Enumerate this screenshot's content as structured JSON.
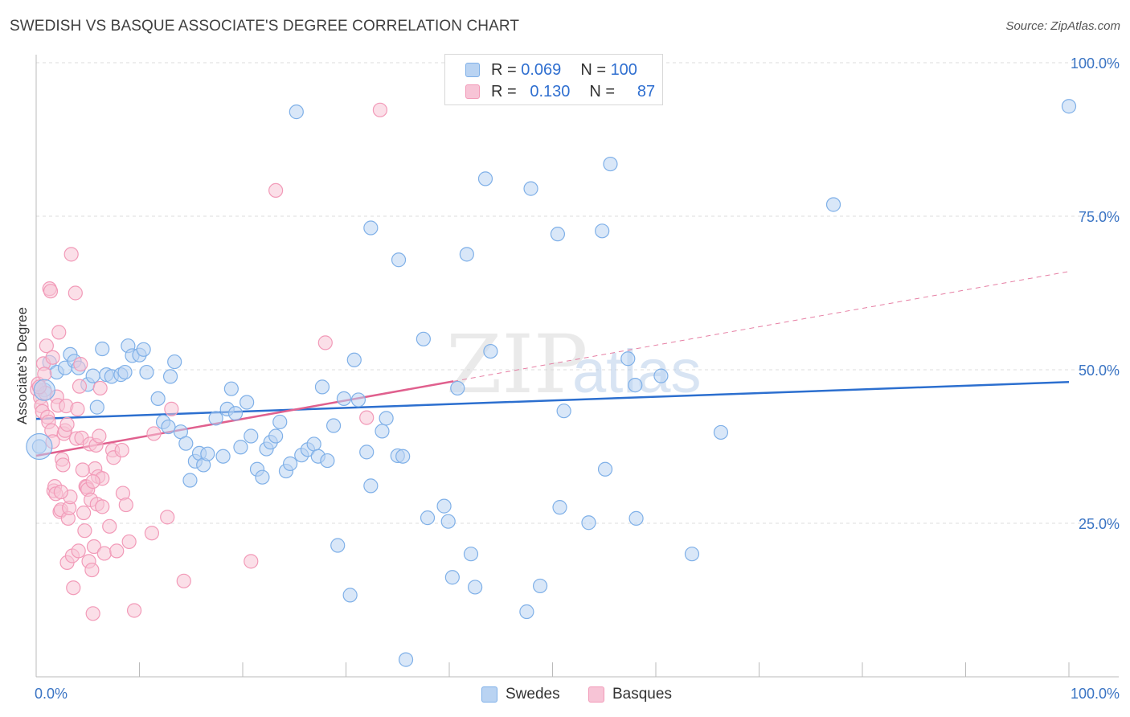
{
  "title": "SWEDISH VS BASQUE ASSOCIATE'S DEGREE CORRELATION CHART",
  "source": "Source: ZipAtlas.com",
  "watermark": {
    "zip": "ZIP",
    "atlas": "atlas"
  },
  "colors": {
    "blue": "#7fb0e8",
    "blue_fill": "#b9d3f2",
    "blue_line": "#2c6fcf",
    "pink": "#f29ab8",
    "pink_fill": "#f7c4d6",
    "pink_line": "#e0608e",
    "axis_text": "#3a74c4"
  },
  "legend": {
    "rows": [
      {
        "r_label": "R =",
        "r_value": "0.069",
        "n_label": "N =",
        "n_value": "100"
      },
      {
        "r_label": "R =",
        "r_value": "0.130",
        "n_label": "N =",
        "n_value": "87"
      }
    ]
  },
  "bottom_legend": {
    "swedes": "Swedes",
    "basques": "Basques"
  },
  "chart_data": {
    "type": "scatter",
    "title": "SWEDISH VS BASQUE ASSOCIATE'S DEGREE CORRELATION CHART",
    "xlabel": "",
    "ylabel": "Associate's Degree",
    "xlim": [
      0,
      100
    ],
    "ylim": [
      0,
      100
    ],
    "x_tick_labels": [
      "0.0%",
      "100.0%"
    ],
    "y_ticks": [
      25,
      50,
      75,
      100
    ],
    "y_tick_labels": [
      "25.0%",
      "50.0%",
      "75.0%",
      "100.0%"
    ],
    "grid": true,
    "series": [
      {
        "name": "Swedes",
        "r": 0.069,
        "n": 100,
        "trend": {
          "x0": 0,
          "y0": 42.0,
          "x1": 100,
          "y1": 48.0,
          "solid_to": 100
        },
        "points": [
          [
            0.3,
            37.5
          ],
          [
            0.8,
            46.7
          ],
          [
            1.3,
            51.2
          ],
          [
            2.0,
            49.6
          ],
          [
            2.8,
            50.3
          ],
          [
            3.3,
            52.5
          ],
          [
            3.7,
            51.4
          ],
          [
            4.1,
            50.3
          ],
          [
            5.0,
            47.6
          ],
          [
            5.5,
            49.0
          ],
          [
            5.9,
            43.9
          ],
          [
            6.4,
            53.4
          ],
          [
            6.8,
            49.2
          ],
          [
            7.3,
            48.9
          ],
          [
            8.2,
            49.2
          ],
          [
            8.6,
            49.6
          ],
          [
            8.9,
            53.9
          ],
          [
            9.3,
            52.3
          ],
          [
            10.0,
            52.4
          ],
          [
            10.4,
            53.3
          ],
          [
            10.7,
            49.6
          ],
          [
            11.8,
            45.3
          ],
          [
            12.3,
            41.5
          ],
          [
            12.8,
            40.7
          ],
          [
            13.0,
            48.9
          ],
          [
            13.4,
            51.3
          ],
          [
            14.0,
            39.9
          ],
          [
            14.5,
            38.0
          ],
          [
            14.9,
            32.0
          ],
          [
            15.4,
            35.1
          ],
          [
            15.8,
            36.4
          ],
          [
            16.2,
            34.5
          ],
          [
            16.6,
            36.3
          ],
          [
            17.4,
            42.1
          ],
          [
            18.1,
            35.9
          ],
          [
            18.5,
            43.6
          ],
          [
            18.9,
            46.9
          ],
          [
            19.3,
            42.9
          ],
          [
            19.8,
            37.4
          ],
          [
            20.4,
            44.7
          ],
          [
            20.8,
            39.2
          ],
          [
            21.4,
            33.8
          ],
          [
            21.9,
            32.5
          ],
          [
            22.3,
            37.1
          ],
          [
            22.7,
            38.2
          ],
          [
            23.2,
            39.2
          ],
          [
            23.6,
            41.5
          ],
          [
            24.2,
            33.5
          ],
          [
            24.6,
            34.7
          ],
          [
            25.2,
            92.0
          ],
          [
            25.7,
            36.1
          ],
          [
            26.3,
            37.0
          ],
          [
            26.9,
            37.9
          ],
          [
            27.3,
            35.9
          ],
          [
            27.7,
            47.2
          ],
          [
            28.2,
            35.2
          ],
          [
            28.8,
            40.9
          ],
          [
            29.2,
            21.4
          ],
          [
            29.8,
            45.3
          ],
          [
            30.4,
            13.3
          ],
          [
            30.8,
            51.6
          ],
          [
            31.2,
            45.1
          ],
          [
            32.0,
            36.6
          ],
          [
            32.4,
            73.1
          ],
          [
            32.4,
            31.1
          ],
          [
            33.5,
            40.0
          ],
          [
            33.9,
            42.1
          ],
          [
            35.0,
            36.0
          ],
          [
            35.5,
            35.9
          ],
          [
            35.1,
            67.9
          ],
          [
            35.8,
            2.8
          ],
          [
            37.5,
            55.0
          ],
          [
            37.9,
            25.9
          ],
          [
            39.5,
            27.8
          ],
          [
            39.9,
            25.3
          ],
          [
            40.3,
            16.2
          ],
          [
            40.8,
            47.0
          ],
          [
            41.7,
            68.8
          ],
          [
            42.1,
            20.0
          ],
          [
            42.5,
            14.6
          ],
          [
            43.5,
            81.1
          ],
          [
            44.0,
            53.0
          ],
          [
            47.5,
            10.6
          ],
          [
            47.9,
            79.5
          ],
          [
            48.8,
            14.8
          ],
          [
            50.5,
            72.1
          ],
          [
            50.7,
            27.6
          ],
          [
            51.1,
            43.3
          ],
          [
            53.5,
            25.1
          ],
          [
            54.8,
            72.6
          ],
          [
            55.1,
            33.8
          ],
          [
            55.6,
            83.5
          ],
          [
            57.3,
            51.8
          ],
          [
            58.1,
            25.8
          ],
          [
            60.5,
            49.0
          ],
          [
            63.5,
            20.0
          ],
          [
            66.3,
            39.8
          ],
          [
            77.2,
            76.9
          ],
          [
            100.0,
            92.9
          ],
          [
            58.0,
            47.5
          ]
        ]
      },
      {
        "name": "Basques",
        "r": 0.13,
        "n": 87,
        "trend": {
          "x0": 0,
          "y0": 36.0,
          "x1": 100,
          "y1": 66.0,
          "solid_to": 40.4
        },
        "points": [
          [
            0.1,
            46.8
          ],
          [
            0.2,
            47.7
          ],
          [
            0.4,
            45.5
          ],
          [
            0.5,
            44.1
          ],
          [
            0.6,
            43.2
          ],
          [
            0.7,
            51.0
          ],
          [
            0.8,
            49.3
          ],
          [
            0.9,
            46.2
          ],
          [
            1.0,
            53.9
          ],
          [
            1.1,
            42.3
          ],
          [
            1.2,
            41.5
          ],
          [
            1.3,
            63.2
          ],
          [
            1.4,
            62.8
          ],
          [
            1.5,
            40.1
          ],
          [
            1.6,
            38.3
          ],
          [
            1.7,
            30.3
          ],
          [
            1.8,
            31.0
          ],
          [
            1.9,
            29.8
          ],
          [
            2.0,
            45.6
          ],
          [
            2.1,
            44.2
          ],
          [
            2.2,
            56.1
          ],
          [
            2.3,
            26.9
          ],
          [
            2.4,
            27.2
          ],
          [
            2.5,
            35.4
          ],
          [
            2.6,
            34.5
          ],
          [
            2.7,
            39.6
          ],
          [
            2.8,
            40.1
          ],
          [
            2.9,
            44.1
          ],
          [
            3.0,
            18.6
          ],
          [
            3.1,
            25.8
          ],
          [
            3.2,
            27.5
          ],
          [
            3.3,
            29.3
          ],
          [
            3.4,
            68.8
          ],
          [
            3.5,
            19.7
          ],
          [
            3.6,
            14.5
          ],
          [
            3.8,
            62.5
          ],
          [
            3.9,
            38.8
          ],
          [
            4.0,
            43.6
          ],
          [
            4.1,
            20.5
          ],
          [
            4.2,
            47.3
          ],
          [
            4.3,
            50.9
          ],
          [
            4.4,
            38.9
          ],
          [
            4.6,
            26.7
          ],
          [
            4.7,
            23.8
          ],
          [
            4.8,
            31.0
          ],
          [
            4.9,
            30.9
          ],
          [
            5.0,
            30.5
          ],
          [
            5.1,
            18.8
          ],
          [
            5.2,
            37.9
          ],
          [
            5.3,
            28.8
          ],
          [
            5.4,
            17.4
          ],
          [
            5.5,
            10.3
          ],
          [
            5.6,
            21.2
          ],
          [
            5.7,
            33.9
          ],
          [
            5.8,
            37.7
          ],
          [
            5.9,
            28.1
          ],
          [
            6.0,
            32.6
          ],
          [
            6.1,
            39.2
          ],
          [
            6.2,
            47.0
          ],
          [
            6.4,
            27.7
          ],
          [
            6.6,
            20.1
          ],
          [
            7.4,
            36.9
          ],
          [
            7.5,
            35.7
          ],
          [
            7.8,
            20.5
          ],
          [
            8.3,
            36.9
          ],
          [
            8.4,
            29.9
          ],
          [
            8.7,
            28.0
          ],
          [
            9.5,
            10.8
          ],
          [
            11.2,
            23.4
          ],
          [
            11.4,
            39.6
          ],
          [
            12.7,
            26.0
          ],
          [
            13.1,
            43.6
          ],
          [
            14.3,
            15.6
          ],
          [
            20.8,
            18.8
          ],
          [
            23.2,
            79.2
          ],
          [
            28.0,
            54.4
          ],
          [
            32.0,
            42.2
          ],
          [
            33.3,
            92.3
          ],
          [
            3.0,
            41.1
          ],
          [
            6.4,
            32.3
          ],
          [
            0.3,
            47.2
          ],
          [
            1.6,
            52.0
          ],
          [
            2.4,
            30.1
          ],
          [
            4.5,
            33.7
          ],
          [
            5.5,
            31.8
          ],
          [
            7.1,
            24.5
          ],
          [
            9.0,
            22.0
          ]
        ]
      }
    ]
  }
}
